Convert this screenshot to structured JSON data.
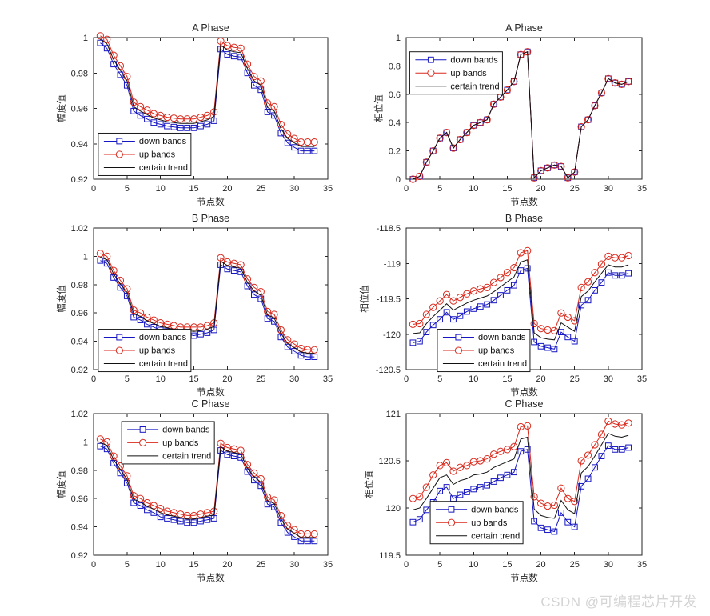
{
  "watermark": {
    "text": "CSDN @可编程芯片开发",
    "color": "#d4d4d4"
  },
  "colors": {
    "axis": "#262626",
    "tick_text": "#262626",
    "legend_border": "#1a1a1a",
    "background": "#ffffff"
  },
  "series_styles": {
    "down": {
      "label": "down bands",
      "color": "#1616c3",
      "marker": "square"
    },
    "up": {
      "label": "up bands",
      "color": "#da291c",
      "marker": "circle"
    },
    "trend": {
      "label": "certain trend",
      "color": "#111111",
      "marker": "none"
    }
  },
  "legend": {
    "entries": [
      {
        "series": "down",
        "label": "down bands"
      },
      {
        "series": "up",
        "label": "up bands"
      },
      {
        "series": "trend",
        "label": "certain trend"
      }
    ]
  },
  "x_nodes": [
    1,
    2,
    3,
    4,
    5,
    6,
    7,
    8,
    9,
    10,
    11,
    12,
    13,
    14,
    15,
    16,
    17,
    18,
    19,
    20,
    21,
    22,
    23,
    24,
    25,
    26,
    27,
    28,
    29,
    30,
    31,
    32,
    33
  ],
  "chart_data": [
    {
      "id": "amp-a",
      "type": "line",
      "title": "A Phase",
      "xlabel": "节点数",
      "ylabel": "幅度值",
      "col": 0,
      "grid": false,
      "xlim": [
        0,
        35
      ],
      "xticks": [
        0,
        5,
        10,
        15,
        20,
        25,
        30,
        35
      ],
      "xtick_labels": [
        "0",
        "5",
        "10",
        "15",
        "20",
        "25",
        "30",
        "35"
      ],
      "ylim": [
        0.92,
        1.0
      ],
      "yticks": [
        0.92,
        0.94,
        0.96,
        0.98,
        1
      ],
      "ytick_labels": [
        "0.92",
        "0.94",
        "0.96",
        "0.98",
        "1"
      ],
      "legend_pos": {
        "name": "lower-left",
        "fx": 0.02,
        "fy": 0.675
      },
      "series": [
        {
          "name": "down bands",
          "key": "down",
          "values": [
            0.997,
            0.994,
            0.985,
            0.979,
            0.973,
            0.9585,
            0.956,
            0.954,
            0.952,
            0.951,
            0.95,
            0.9495,
            0.949,
            0.949,
            0.949,
            0.95,
            0.951,
            0.953,
            0.9935,
            0.9905,
            0.9895,
            0.989,
            0.98,
            0.973,
            0.9705,
            0.958,
            0.956,
            0.946,
            0.9405,
            0.938,
            0.936,
            0.936,
            0.936
          ]
        },
        {
          "name": "up bands",
          "key": "up",
          "values": [
            1.001,
            0.999,
            0.99,
            0.984,
            0.978,
            0.9635,
            0.961,
            0.959,
            0.957,
            0.956,
            0.955,
            0.9545,
            0.954,
            0.954,
            0.954,
            0.955,
            0.956,
            0.958,
            0.998,
            0.9955,
            0.9945,
            0.994,
            0.985,
            0.978,
            0.9755,
            0.963,
            0.961,
            0.951,
            0.9455,
            0.943,
            0.941,
            0.941,
            0.941
          ]
        },
        {
          "name": "certain trend",
          "key": "trend",
          "values": [
            0.999,
            0.9965,
            0.9875,
            0.9815,
            0.9755,
            0.961,
            0.9585,
            0.9565,
            0.9545,
            0.9535,
            0.9525,
            0.952,
            0.9515,
            0.9515,
            0.9515,
            0.9525,
            0.9535,
            0.9555,
            0.9958,
            0.993,
            0.992,
            0.9915,
            0.9825,
            0.9755,
            0.973,
            0.9605,
            0.9585,
            0.9485,
            0.943,
            0.9405,
            0.9385,
            0.9385,
            0.9385
          ]
        }
      ]
    },
    {
      "id": "phase-a",
      "type": "line",
      "title": "A Phase",
      "xlabel": "节点数",
      "ylabel": "相位值",
      "col": 1,
      "grid": false,
      "xlim": [
        0,
        35
      ],
      "xticks": [
        0,
        5,
        10,
        15,
        20,
        25,
        30,
        35
      ],
      "xtick_labels": [
        "0",
        "5",
        "10",
        "15",
        "20",
        "25",
        "30",
        "35"
      ],
      "ylim": [
        0,
        1
      ],
      "yticks": [
        0,
        0.2,
        0.4,
        0.6,
        0.8,
        1
      ],
      "ytick_labels": [
        "0",
        "0.2",
        "0.4",
        "0.6",
        "0.8",
        "1"
      ],
      "legend_pos": {
        "name": "upper-left",
        "fx": 0.015,
        "fy": 0.1
      },
      "series": [
        {
          "name": "down bands",
          "key": "down",
          "values": [
            0,
            0.02,
            0.12,
            0.2,
            0.29,
            0.33,
            0.22,
            0.28,
            0.33,
            0.38,
            0.4,
            0.42,
            0.53,
            0.58,
            0.63,
            0.69,
            0.88,
            0.9,
            0.01,
            0.06,
            0.08,
            0.1,
            0.09,
            0.01,
            0.05,
            0.37,
            0.42,
            0.52,
            0.61,
            0.71,
            0.68,
            0.67,
            0.69
          ]
        },
        {
          "name": "up bands",
          "key": "up",
          "values": [
            0,
            0.02,
            0.12,
            0.2,
            0.29,
            0.33,
            0.22,
            0.28,
            0.33,
            0.38,
            0.4,
            0.42,
            0.53,
            0.58,
            0.63,
            0.69,
            0.88,
            0.9,
            0.01,
            0.06,
            0.08,
            0.1,
            0.09,
            0.01,
            0.05,
            0.37,
            0.42,
            0.52,
            0.61,
            0.71,
            0.68,
            0.67,
            0.69
          ]
        },
        {
          "name": "certain trend",
          "key": "trend",
          "values": [
            0,
            0.02,
            0.12,
            0.2,
            0.29,
            0.33,
            0.22,
            0.28,
            0.33,
            0.38,
            0.4,
            0.42,
            0.53,
            0.58,
            0.63,
            0.69,
            0.88,
            0.9,
            0.01,
            0.06,
            0.08,
            0.1,
            0.09,
            0.01,
            0.05,
            0.37,
            0.42,
            0.52,
            0.61,
            0.71,
            0.68,
            0.67,
            0.69
          ]
        }
      ]
    },
    {
      "id": "amp-b",
      "type": "line",
      "title": "B Phase",
      "xlabel": "节点数",
      "ylabel": "幅度值",
      "col": 0,
      "grid": false,
      "xlim": [
        0,
        35
      ],
      "xticks": [
        0,
        5,
        10,
        15,
        20,
        25,
        30,
        35
      ],
      "xtick_labels": [
        "0",
        "5",
        "10",
        "15",
        "20",
        "25",
        "30",
        "35"
      ],
      "ylim": [
        0.92,
        1.02
      ],
      "yticks": [
        0.92,
        0.94,
        0.96,
        0.98,
        1,
        1.02
      ],
      "ytick_labels": [
        "0.92",
        "0.94",
        "0.96",
        "0.98",
        "1",
        "1.02"
      ],
      "legend_pos": {
        "name": "lower-left",
        "fx": 0.02,
        "fy": 0.715
      },
      "series": [
        {
          "name": "down bands",
          "key": "down",
          "values": [
            0.997,
            0.995,
            0.985,
            0.978,
            0.972,
            0.957,
            0.955,
            0.952,
            0.95,
            0.948,
            0.947,
            0.946,
            0.945,
            0.945,
            0.944,
            0.945,
            0.946,
            0.948,
            0.994,
            0.991,
            0.99,
            0.989,
            0.979,
            0.973,
            0.97,
            0.956,
            0.954,
            0.943,
            0.936,
            0.933,
            0.93,
            0.929,
            0.929
          ]
        },
        {
          "name": "up bands",
          "key": "up",
          "values": [
            1.002,
            1.0,
            0.99,
            0.983,
            0.977,
            0.962,
            0.96,
            0.957,
            0.955,
            0.953,
            0.952,
            0.951,
            0.95,
            0.95,
            0.95,
            0.95,
            0.951,
            0.953,
            0.999,
            0.996,
            0.995,
            0.994,
            0.984,
            0.978,
            0.975,
            0.961,
            0.959,
            0.948,
            0.941,
            0.938,
            0.935,
            0.934,
            0.934
          ]
        },
        {
          "name": "certain trend",
          "key": "trend",
          "values": [
            0.9995,
            0.9975,
            0.9875,
            0.9805,
            0.9745,
            0.9595,
            0.9575,
            0.9545,
            0.9525,
            0.9505,
            0.9495,
            0.9485,
            0.9475,
            0.9475,
            0.947,
            0.9475,
            0.9485,
            0.9505,
            0.9965,
            0.9935,
            0.9925,
            0.9915,
            0.9815,
            0.9755,
            0.9725,
            0.9585,
            0.9565,
            0.9455,
            0.9385,
            0.9355,
            0.9325,
            0.9315,
            0.9315
          ]
        }
      ]
    },
    {
      "id": "phase-b",
      "type": "line",
      "title": "B Phase",
      "xlabel": "节点数",
      "ylabel": "相位值",
      "col": 1,
      "grid": false,
      "xlim": [
        0,
        35
      ],
      "xticks": [
        0,
        5,
        10,
        15,
        20,
        25,
        30,
        35
      ],
      "xtick_labels": [
        "0",
        "5",
        "10",
        "15",
        "20",
        "25",
        "30",
        "35"
      ],
      "ylim": [
        -120.5,
        -118.5
      ],
      "yticks": [
        -120.5,
        -120,
        -119.5,
        -119,
        -118.5
      ],
      "ytick_labels": [
        "-120.5",
        "-120",
        "-119.5",
        "-119",
        "-118.5"
      ],
      "legend_pos": {
        "name": "lower-center",
        "fx": 0.132,
        "fy": 0.715
      },
      "series": [
        {
          "name": "down bands",
          "key": "down",
          "values": [
            -120.12,
            -120.1,
            -119.97,
            -119.87,
            -119.79,
            -119.69,
            -119.79,
            -119.74,
            -119.68,
            -119.64,
            -119.61,
            -119.58,
            -119.52,
            -119.45,
            -119.38,
            -119.31,
            -119.1,
            -119.07,
            -120.11,
            -120.17,
            -120.19,
            -120.21,
            -119.97,
            -120.04,
            -120.1,
            -119.59,
            -119.52,
            -119.38,
            -119.27,
            -119.13,
            -119.17,
            -119.17,
            -119.14
          ]
        },
        {
          "name": "up bands",
          "key": "up",
          "values": [
            -119.86,
            -119.85,
            -119.72,
            -119.62,
            -119.53,
            -119.44,
            -119.53,
            -119.48,
            -119.43,
            -119.39,
            -119.36,
            -119.34,
            -119.27,
            -119.2,
            -119.13,
            -119.06,
            -118.85,
            -118.82,
            -119.85,
            -119.92,
            -119.94,
            -119.95,
            -119.7,
            -119.76,
            -119.81,
            -119.34,
            -119.26,
            -119.13,
            -119.01,
            -118.9,
            -118.92,
            -118.92,
            -118.89
          ]
        },
        {
          "name": "certain trend",
          "key": "trend",
          "values": [
            -119.99,
            -119.98,
            -119.85,
            -119.75,
            -119.66,
            -119.57,
            -119.66,
            -119.61,
            -119.56,
            -119.52,
            -119.49,
            -119.46,
            -119.4,
            -119.33,
            -119.26,
            -119.19,
            -118.98,
            -118.95,
            -119.98,
            -120.05,
            -120.07,
            -120.08,
            -119.84,
            -119.9,
            -119.96,
            -119.47,
            -119.39,
            -119.26,
            -119.14,
            -119.02,
            -119.05,
            -119.05,
            -119.02
          ]
        }
      ]
    },
    {
      "id": "amp-c",
      "type": "line",
      "title": "C Phase",
      "xlabel": "节点数",
      "ylabel": "幅度值",
      "col": 0,
      "grid": false,
      "xlim": [
        0,
        35
      ],
      "xticks": [
        0,
        5,
        10,
        15,
        20,
        25,
        30,
        35
      ],
      "xtick_labels": [
        "0",
        "5",
        "10",
        "15",
        "20",
        "25",
        "30",
        "35"
      ],
      "ylim": [
        0.92,
        1.02
      ],
      "yticks": [
        0.92,
        0.94,
        0.96,
        0.98,
        1,
        1.02
      ],
      "ytick_labels": [
        "0.92",
        "0.94",
        "0.96",
        "0.98",
        "1",
        "1.02"
      ],
      "legend_pos": {
        "name": "upper-left",
        "fx": 0.12,
        "fy": 0.056
      },
      "series": [
        {
          "name": "down bands",
          "key": "down",
          "values": [
            0.997,
            0.995,
            0.985,
            0.978,
            0.971,
            0.957,
            0.955,
            0.952,
            0.95,
            0.947,
            0.946,
            0.945,
            0.944,
            0.943,
            0.943,
            0.944,
            0.945,
            0.946,
            0.994,
            0.991,
            0.99,
            0.989,
            0.979,
            0.973,
            0.969,
            0.956,
            0.954,
            0.943,
            0.936,
            0.933,
            0.93,
            0.93,
            0.93
          ]
        },
        {
          "name": "up bands",
          "key": "up",
          "values": [
            1.002,
            1.0,
            0.99,
            0.983,
            0.976,
            0.962,
            0.96,
            0.957,
            0.955,
            0.953,
            0.951,
            0.95,
            0.949,
            0.948,
            0.948,
            0.949,
            0.95,
            0.951,
            0.999,
            0.996,
            0.995,
            0.994,
            0.984,
            0.978,
            0.974,
            0.961,
            0.959,
            0.948,
            0.941,
            0.938,
            0.935,
            0.935,
            0.935
          ]
        },
        {
          "name": "certain trend",
          "key": "trend",
          "values": [
            0.9995,
            0.9975,
            0.9875,
            0.9805,
            0.9735,
            0.9595,
            0.9575,
            0.9545,
            0.9525,
            0.95,
            0.9485,
            0.9475,
            0.9465,
            0.9455,
            0.9455,
            0.9465,
            0.9475,
            0.9485,
            0.9965,
            0.9935,
            0.9925,
            0.9915,
            0.9815,
            0.9755,
            0.9715,
            0.9585,
            0.9565,
            0.9455,
            0.9385,
            0.9355,
            0.9325,
            0.9325,
            0.9325
          ]
        }
      ]
    },
    {
      "id": "phase-c",
      "type": "line",
      "title": "C Phase",
      "xlabel": "节点数",
      "ylabel": "相位值",
      "col": 1,
      "grid": false,
      "xlim": [
        0,
        35
      ],
      "xticks": [
        0,
        5,
        10,
        15,
        20,
        25,
        30,
        35
      ],
      "xtick_labels": [
        "0",
        "5",
        "10",
        "15",
        "20",
        "25",
        "30",
        "35"
      ],
      "ylim": [
        119.5,
        121
      ],
      "yticks": [
        119.5,
        120,
        120.5,
        121
      ],
      "ytick_labels": [
        "119.5",
        "120",
        "120.5",
        "121"
      ],
      "legend_pos": {
        "name": "lower-left",
        "fx": 0.102,
        "fy": 0.62
      },
      "series": [
        {
          "name": "down bands",
          "key": "down",
          "values": [
            119.85,
            119.88,
            119.98,
            120.06,
            120.18,
            120.22,
            120.1,
            120.14,
            120.17,
            120.2,
            120.22,
            120.24,
            120.28,
            120.32,
            120.35,
            120.38,
            120.6,
            120.62,
            119.86,
            119.79,
            119.77,
            119.75,
            119.95,
            119.85,
            119.8,
            120.23,
            120.31,
            120.43,
            120.55,
            120.66,
            120.62,
            120.62,
            120.64
          ]
        },
        {
          "name": "up bands",
          "key": "up",
          "values": [
            120.1,
            120.12,
            120.22,
            120.35,
            120.45,
            120.48,
            120.39,
            120.43,
            120.45,
            120.49,
            120.5,
            120.52,
            120.57,
            120.6,
            120.62,
            120.65,
            120.86,
            120.87,
            120.12,
            120.05,
            120.02,
            120.03,
            120.21,
            120.1,
            120.07,
            120.5,
            120.56,
            120.67,
            120.78,
            120.92,
            120.89,
            120.88,
            120.9
          ]
        },
        {
          "name": "certain trend",
          "key": "trend",
          "values": [
            119.98,
            120.0,
            120.1,
            120.21,
            120.32,
            120.35,
            120.25,
            120.29,
            120.31,
            120.35,
            120.36,
            120.38,
            120.43,
            120.46,
            120.49,
            120.52,
            120.73,
            120.75,
            119.99,
            119.92,
            119.9,
            119.89,
            120.08,
            119.98,
            119.94,
            120.37,
            120.44,
            120.55,
            120.67,
            120.79,
            120.76,
            120.75,
            120.77
          ]
        }
      ]
    }
  ]
}
